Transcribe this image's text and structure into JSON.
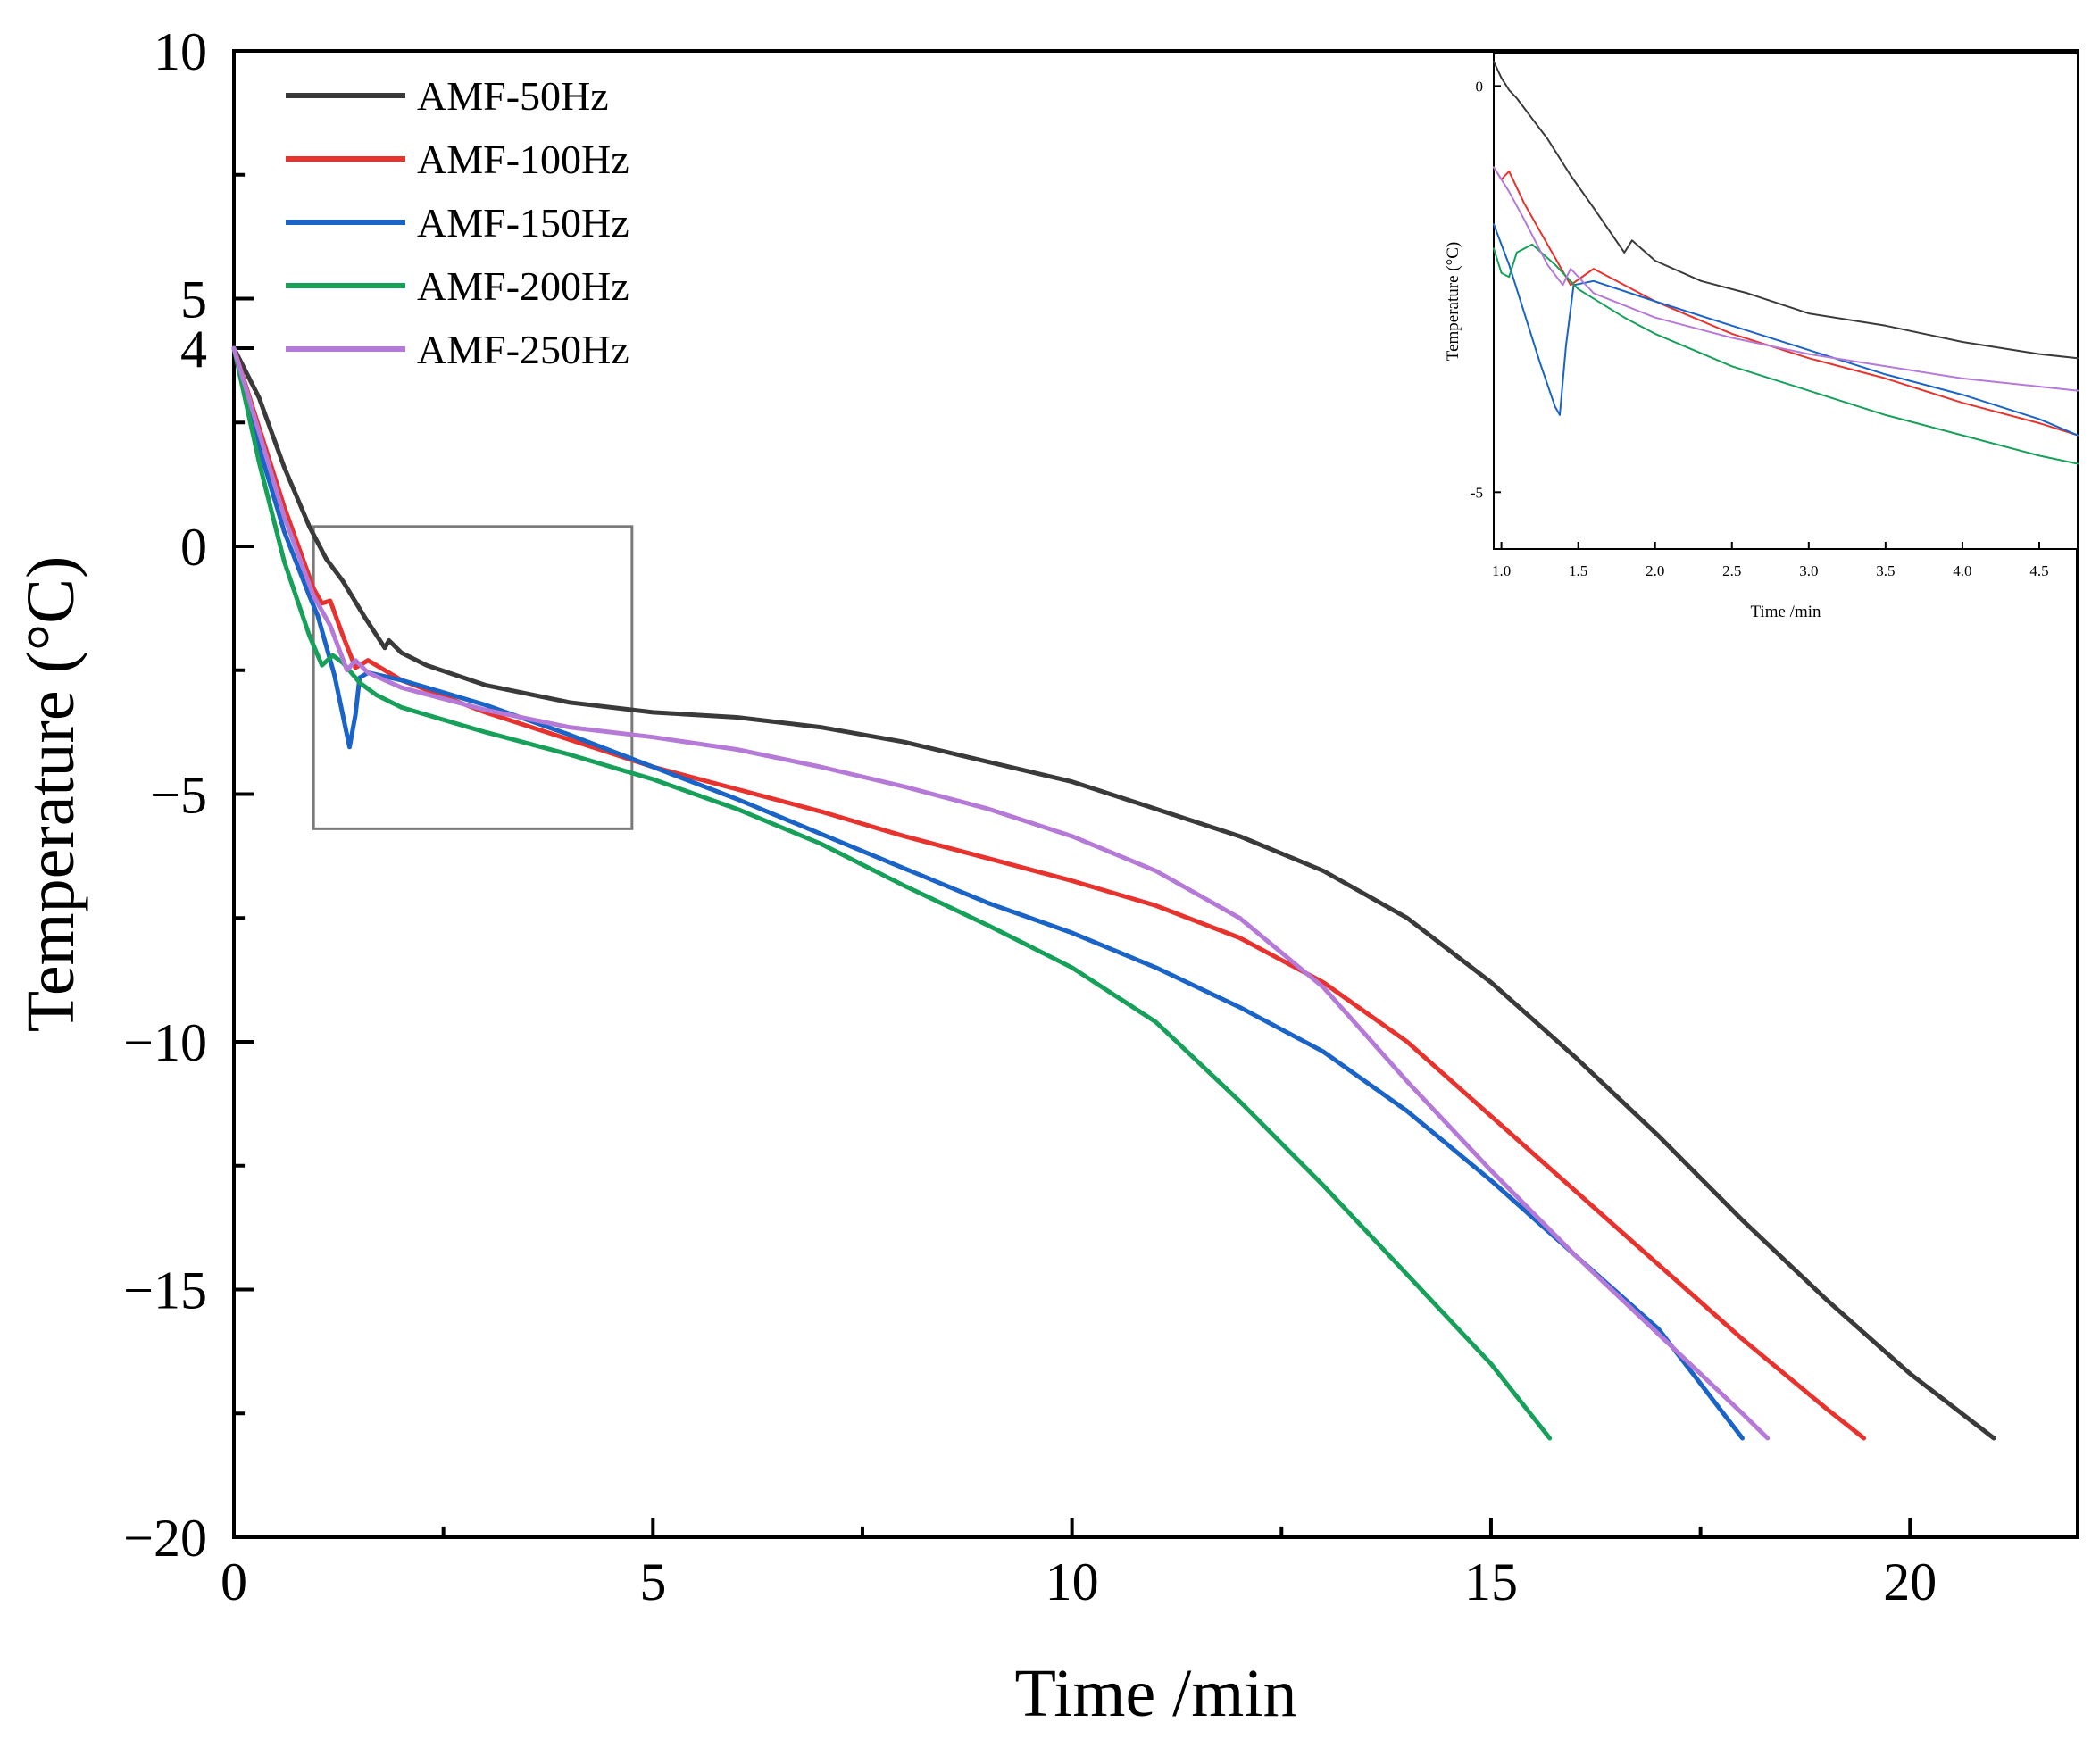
{
  "chart_data": [
    {
      "type": "line",
      "name": "main",
      "title": "",
      "xlabel": "Time /min",
      "ylabel": "Temperature (°C)",
      "xlim": [
        0,
        22
      ],
      "ylim": [
        -20,
        10
      ],
      "xticks": [
        0,
        5,
        10,
        15,
        20
      ],
      "xtick_labels": [
        "0",
        "5",
        "10",
        "15",
        "20"
      ],
      "yticks": [
        -20,
        -15,
        -10,
        -5,
        0,
        4,
        5,
        10
      ],
      "ytick_labels": [
        "−20",
        "−15",
        "−10",
        "−5",
        "0",
        "4",
        "5",
        "10"
      ],
      "grid": false,
      "legend_position": "top-left",
      "zoom_region": {
        "x": [
          0.95,
          4.75
        ],
        "y": [
          -5.7,
          0.4
        ]
      },
      "series": [
        {
          "name": "AMF-50Hz",
          "color": "#3a3a3a",
          "points": [
            [
              0,
              4
            ],
            [
              0.3,
              3.0
            ],
            [
              0.6,
              1.6
            ],
            [
              0.9,
              0.4
            ],
            [
              1.1,
              -0.25
            ],
            [
              1.3,
              -0.7
            ],
            [
              1.55,
              -1.4
            ],
            [
              1.8,
              -2.05
            ],
            [
              1.85,
              -1.9
            ],
            [
              2.0,
              -2.15
            ],
            [
              2.3,
              -2.4
            ],
            [
              3.0,
              -2.8
            ],
            [
              4.0,
              -3.15
            ],
            [
              5.0,
              -3.35
            ],
            [
              6.0,
              -3.45
            ],
            [
              7.0,
              -3.65
            ],
            [
              8.0,
              -3.95
            ],
            [
              9.0,
              -4.35
            ],
            [
              10.0,
              -4.75
            ],
            [
              11.0,
              -5.3
            ],
            [
              12.0,
              -5.85
            ],
            [
              13.0,
              -6.55
            ],
            [
              14.0,
              -7.5
            ],
            [
              15.0,
              -8.8
            ],
            [
              16.0,
              -10.3
            ],
            [
              17.0,
              -11.9
            ],
            [
              18.0,
              -13.6
            ],
            [
              19.0,
              -15.2
            ],
            [
              20.0,
              -16.7
            ],
            [
              21.0,
              -18.0
            ]
          ]
        },
        {
          "name": "AMF-100Hz",
          "color": "#e8322d",
          "points": [
            [
              0,
              4
            ],
            [
              0.3,
              2.4
            ],
            [
              0.6,
              0.8
            ],
            [
              0.95,
              -0.85
            ],
            [
              1.05,
              -1.15
            ],
            [
              1.15,
              -1.1
            ],
            [
              1.3,
              -1.8
            ],
            [
              1.45,
              -2.45
            ],
            [
              1.6,
              -2.3
            ],
            [
              2.0,
              -2.7
            ],
            [
              3.0,
              -3.35
            ],
            [
              4.0,
              -3.9
            ],
            [
              5.0,
              -4.45
            ],
            [
              6.0,
              -4.9
            ],
            [
              7.0,
              -5.35
            ],
            [
              8.0,
              -5.85
            ],
            [
              9.0,
              -6.3
            ],
            [
              10.0,
              -6.75
            ],
            [
              11.0,
              -7.25
            ],
            [
              12.0,
              -7.9
            ],
            [
              13.0,
              -8.8
            ],
            [
              14.0,
              -10.0
            ],
            [
              15.0,
              -11.5
            ],
            [
              16.0,
              -13.0
            ],
            [
              17.0,
              -14.5
            ],
            [
              18.0,
              -16.0
            ],
            [
              19.0,
              -17.4
            ],
            [
              19.45,
              -18.0
            ]
          ]
        },
        {
          "name": "AMF-150Hz",
          "color": "#1a63c7",
          "points": [
            [
              0,
              4
            ],
            [
              0.3,
              2.0
            ],
            [
              0.6,
              0.3
            ],
            [
              0.9,
              -1.0
            ],
            [
              1.0,
              -1.4
            ],
            [
              1.2,
              -2.6
            ],
            [
              1.38,
              -4.05
            ],
            [
              1.45,
              -3.4
            ],
            [
              1.5,
              -2.65
            ],
            [
              1.6,
              -2.55
            ],
            [
              2.0,
              -2.7
            ],
            [
              3.0,
              -3.2
            ],
            [
              4.0,
              -3.8
            ],
            [
              5.0,
              -4.45
            ],
            [
              6.0,
              -5.1
            ],
            [
              7.0,
              -5.8
            ],
            [
              8.0,
              -6.5
            ],
            [
              9.0,
              -7.2
            ],
            [
              10.0,
              -7.8
            ],
            [
              11.0,
              -8.5
            ],
            [
              12.0,
              -9.3
            ],
            [
              13.0,
              -10.2
            ],
            [
              14.0,
              -11.4
            ],
            [
              15.0,
              -12.8
            ],
            [
              16.0,
              -14.3
            ],
            [
              17.0,
              -15.8
            ],
            [
              18.0,
              -18.0
            ]
          ]
        },
        {
          "name": "AMF-200Hz",
          "color": "#17a05a",
          "points": [
            [
              0,
              4
            ],
            [
              0.3,
              1.7
            ],
            [
              0.6,
              -0.3
            ],
            [
              0.9,
              -1.8
            ],
            [
              1.05,
              -2.4
            ],
            [
              1.18,
              -2.2
            ],
            [
              1.3,
              -2.35
            ],
            [
              1.5,
              -2.75
            ],
            [
              1.7,
              -3.0
            ],
            [
              2.0,
              -3.25
            ],
            [
              3.0,
              -3.75
            ],
            [
              4.0,
              -4.2
            ],
            [
              5.0,
              -4.7
            ],
            [
              6.0,
              -5.3
            ],
            [
              7.0,
              -6.0
            ],
            [
              8.0,
              -6.85
            ],
            [
              9.0,
              -7.65
            ],
            [
              10.0,
              -8.5
            ],
            [
              11.0,
              -9.6
            ],
            [
              12.0,
              -11.2
            ],
            [
              13.0,
              -12.9
            ],
            [
              14.0,
              -14.7
            ],
            [
              15.0,
              -16.5
            ],
            [
              15.7,
              -18.0
            ]
          ]
        },
        {
          "name": "AMF-250Hz",
          "color": "#b57ad8",
          "points": [
            [
              0,
              4
            ],
            [
              0.3,
              2.3
            ],
            [
              0.6,
              0.6
            ],
            [
              0.95,
              -1.0
            ],
            [
              1.15,
              -1.6
            ],
            [
              1.35,
              -2.5
            ],
            [
              1.45,
              -2.3
            ],
            [
              1.6,
              -2.55
            ],
            [
              2.0,
              -2.85
            ],
            [
              3.0,
              -3.3
            ],
            [
              4.0,
              -3.65
            ],
            [
              5.0,
              -3.85
            ],
            [
              6.0,
              -4.1
            ],
            [
              7.0,
              -4.45
            ],
            [
              8.0,
              -4.85
            ],
            [
              9.0,
              -5.3
            ],
            [
              10.0,
              -5.85
            ],
            [
              11.0,
              -6.55
            ],
            [
              12.0,
              -7.5
            ],
            [
              13.0,
              -8.9
            ],
            [
              14.0,
              -10.8
            ],
            [
              15.0,
              -12.6
            ],
            [
              16.0,
              -14.3
            ],
            [
              17.0,
              -15.9
            ],
            [
              18.0,
              -17.5
            ],
            [
              18.3,
              -18.0
            ]
          ]
        }
      ]
    },
    {
      "type": "line",
      "name": "inset",
      "title": "",
      "xlabel": "Time /min",
      "ylabel": "Temperature (°C)",
      "xlim": [
        0.95,
        4.75
      ],
      "ylim": [
        -5.7,
        0.4
      ],
      "xticks": [
        1.0,
        1.5,
        2.0,
        2.5,
        3.0,
        3.5,
        4.0,
        4.5
      ],
      "xtick_labels": [
        "1.0",
        "1.5",
        "2.0",
        "2.5",
        "3.0",
        "3.5",
        "4.0",
        "4.5"
      ],
      "yticks": [
        0,
        -5
      ],
      "ytick_labels": [
        "0",
        "-5"
      ],
      "grid": false,
      "legend_position": "none",
      "series": [
        {
          "name": "AMF-50Hz",
          "color": "#3a3a3a",
          "points": [
            [
              0.95,
              0.3
            ],
            [
              1.0,
              0.1
            ],
            [
              1.05,
              -0.05
            ],
            [
              1.1,
              -0.15
            ],
            [
              1.2,
              -0.4
            ],
            [
              1.3,
              -0.65
            ],
            [
              1.45,
              -1.1
            ],
            [
              1.6,
              -1.5
            ],
            [
              1.8,
              -2.05
            ],
            [
              1.85,
              -1.9
            ],
            [
              2.0,
              -2.15
            ],
            [
              2.3,
              -2.4
            ],
            [
              2.6,
              -2.55
            ],
            [
              3.0,
              -2.8
            ],
            [
              3.5,
              -2.95
            ],
            [
              4.0,
              -3.15
            ],
            [
              4.5,
              -3.3
            ],
            [
              4.75,
              -3.35
            ]
          ]
        },
        {
          "name": "AMF-100Hz",
          "color": "#e8322d",
          "points": [
            [
              0.95,
              -1.0
            ],
            [
              1.0,
              -1.15
            ],
            [
              1.05,
              -1.05
            ],
            [
              1.15,
              -1.45
            ],
            [
              1.3,
              -1.95
            ],
            [
              1.45,
              -2.45
            ],
            [
              1.6,
              -2.25
            ],
            [
              2.0,
              -2.65
            ],
            [
              2.5,
              -3.05
            ],
            [
              3.0,
              -3.35
            ],
            [
              3.5,
              -3.6
            ],
            [
              4.0,
              -3.9
            ],
            [
              4.5,
              -4.15
            ],
            [
              4.75,
              -4.3
            ]
          ]
        },
        {
          "name": "AMF-150Hz",
          "color": "#1a63c7",
          "points": [
            [
              0.95,
              -1.7
            ],
            [
              1.05,
              -2.2
            ],
            [
              1.15,
              -2.8
            ],
            [
              1.25,
              -3.4
            ],
            [
              1.35,
              -3.95
            ],
            [
              1.38,
              -4.05
            ],
            [
              1.42,
              -3.2
            ],
            [
              1.47,
              -2.45
            ],
            [
              1.6,
              -2.4
            ],
            [
              2.0,
              -2.65
            ],
            [
              2.5,
              -2.95
            ],
            [
              3.0,
              -3.25
            ],
            [
              3.5,
              -3.55
            ],
            [
              4.0,
              -3.8
            ],
            [
              4.5,
              -4.1
            ],
            [
              4.75,
              -4.3
            ]
          ]
        },
        {
          "name": "AMF-200Hz",
          "color": "#17a05a",
          "points": [
            [
              0.95,
              -2.0
            ],
            [
              1.0,
              -2.3
            ],
            [
              1.05,
              -2.35
            ],
            [
              1.1,
              -2.05
            ],
            [
              1.2,
              -1.95
            ],
            [
              1.35,
              -2.2
            ],
            [
              1.5,
              -2.5
            ],
            [
              1.8,
              -2.85
            ],
            [
              2.0,
              -3.05
            ],
            [
              2.5,
              -3.45
            ],
            [
              3.0,
              -3.75
            ],
            [
              3.5,
              -4.05
            ],
            [
              4.0,
              -4.3
            ],
            [
              4.5,
              -4.55
            ],
            [
              4.75,
              -4.65
            ]
          ]
        },
        {
          "name": "AMF-250Hz",
          "color": "#b57ad8",
          "points": [
            [
              0.95,
              -1.0
            ],
            [
              1.05,
              -1.3
            ],
            [
              1.15,
              -1.65
            ],
            [
              1.3,
              -2.2
            ],
            [
              1.4,
              -2.45
            ],
            [
              1.45,
              -2.25
            ],
            [
              1.6,
              -2.55
            ],
            [
              2.0,
              -2.85
            ],
            [
              2.5,
              -3.1
            ],
            [
              3.0,
              -3.3
            ],
            [
              3.5,
              -3.45
            ],
            [
              4.0,
              -3.6
            ],
            [
              4.5,
              -3.7
            ],
            [
              4.75,
              -3.75
            ]
          ]
        }
      ]
    }
  ]
}
